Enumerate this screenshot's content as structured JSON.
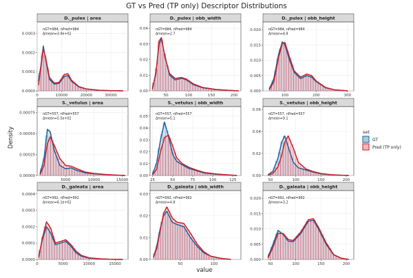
{
  "title": "GT vs Pred (TP only) Descriptor Distributions",
  "xlabel": "value",
  "ylabel": "Density",
  "legend": {
    "title": "set",
    "items": [
      {
        "label": "GT",
        "color": "#1f5f9a",
        "fill": "#a6cbe3"
      },
      {
        "label": "Pred (TP only)",
        "color": "#cc1f27",
        "fill": "#f2b7bb"
      }
    ]
  },
  "colors": {
    "gt": "#1f5f9a",
    "pred": "#cc1f27",
    "strip": "#d9d9d9",
    "grid": "#ebebeb"
  },
  "chart_data": [
    {
      "type": "histogram-density",
      "title": "D._pulex | area",
      "xlim": [
        0,
        37000
      ],
      "ylim": [
        0,
        0.00036
      ],
      "xticks": [
        0,
        10000,
        20000,
        30000
      ],
      "yticks": [
        0,
        0.0001,
        0.0002,
        0.0003
      ],
      "ytick_labels": [
        "0.0000",
        "0.0001",
        "0.0002",
        "0.0003"
      ],
      "annotation": [
        "nGT=984, nPred=984",
        "Δmean=3.9e+02"
      ],
      "series": [
        {
          "name": "GT",
          "x": [
            500,
            1500,
            2500,
            3500,
            5000,
            7000,
            9000,
            11000,
            12500,
            14000,
            17000,
            20000,
            25000,
            30000,
            35000
          ],
          "values": [
            5e-05,
            0.00013,
            0.000235,
            0.00016,
            6e-05,
            3.5e-05,
            4e-05,
            7.5e-05,
            8e-05,
            5e-05,
            2e-05,
            1e-05,
            3e-06,
            1e-06,
            0
          ]
        },
        {
          "name": "Pred (TP only)",
          "x": [
            500,
            1500,
            2500,
            3500,
            5000,
            7000,
            9000,
            11000,
            12500,
            14000,
            17000,
            20000,
            25000,
            30000,
            35000
          ],
          "values": [
            3e-05,
            0.00012,
            0.00022,
            0.00017,
            7e-05,
            4e-05,
            4.5e-05,
            8.5e-05,
            9e-05,
            5.5e-05,
            2.2e-05,
            1e-05,
            3e-06,
            1e-06,
            0
          ]
        }
      ]
    },
    {
      "type": "histogram-density",
      "title": "D._pulex | obb_width",
      "xlim": [
        15,
        215
      ],
      "ylim": [
        0,
        0.044
      ],
      "xticks": [
        50,
        100,
        150,
        200
      ],
      "yticks": [
        0,
        0.01,
        0.02,
        0.03,
        0.04
      ],
      "ytick_labels": [
        "0.00",
        "0.01",
        "0.02",
        "0.03",
        "0.04"
      ],
      "annotation": [
        "nGT=984, nPred=984",
        "Δmean=2.7"
      ],
      "series": [
        {
          "name": "GT",
          "x": [
            20,
            28,
            35,
            40,
            48,
            58,
            70,
            85,
            95,
            110,
            130,
            160,
            190,
            210
          ],
          "values": [
            0.001,
            0.012,
            0.03,
            0.033,
            0.022,
            0.01,
            0.007,
            0.008,
            0.007,
            0.004,
            0.002,
            0.0008,
            0.0003,
            0
          ]
        },
        {
          "name": "Pred (TP only)",
          "x": [
            20,
            28,
            35,
            40,
            48,
            58,
            70,
            85,
            95,
            110,
            130,
            160,
            190,
            210
          ],
          "values": [
            0.0008,
            0.011,
            0.032,
            0.034,
            0.021,
            0.011,
            0.008,
            0.0085,
            0.0075,
            0.0045,
            0.0022,
            0.0009,
            0.0003,
            0
          ]
        }
      ]
    },
    {
      "type": "histogram-density",
      "title": "D._pulex | obb_height",
      "xlim": [
        30,
        320
      ],
      "ylim": [
        0,
        0.0225
      ],
      "xticks": [
        100,
        200,
        300
      ],
      "yticks": [
        0,
        0.005,
        0.01,
        0.015,
        0.02
      ],
      "ytick_labels": [
        "0.000",
        "0.005",
        "0.010",
        "0.015",
        "0.020"
      ],
      "annotation": [
        "nGT=984, nPred=984",
        "Δmean=4.8"
      ],
      "series": [
        {
          "name": "GT",
          "x": [
            50,
            65,
            80,
            92,
            100,
            115,
            130,
            150,
            170,
            185,
            200,
            230,
            260,
            300
          ],
          "values": [
            0.0005,
            0.004,
            0.012,
            0.016,
            0.015,
            0.01,
            0.006,
            0.004,
            0.005,
            0.0045,
            0.003,
            0.001,
            0.0003,
            0
          ]
        },
        {
          "name": "Pred (TP only)",
          "x": [
            50,
            65,
            80,
            92,
            100,
            115,
            130,
            150,
            170,
            185,
            200,
            230,
            260,
            300
          ],
          "values": [
            0.0003,
            0.003,
            0.011,
            0.0155,
            0.0158,
            0.011,
            0.0065,
            0.0045,
            0.0055,
            0.005,
            0.0032,
            0.0011,
            0.0003,
            0
          ]
        }
      ]
    },
    {
      "type": "histogram-density",
      "title": "S._vetulus | area",
      "xlim": [
        0,
        16000
      ],
      "ylim": [
        0,
        0.00082
      ],
      "xticks": [
        5000,
        10000,
        15000
      ],
      "yticks": [
        0,
        0.00025,
        0.0005,
        0.00075
      ],
      "ytick_labels": [
        "0.00000",
        "0.00025",
        "0.00050",
        "0.00075"
      ],
      "annotation": [
        "nGT=557, nPred=557",
        "Δmean=5.5e+02"
      ],
      "series": [
        {
          "name": "GT",
          "x": [
            500,
            1200,
            1800,
            2300,
            3000,
            4000,
            5000,
            6000,
            7000,
            8500,
            10000,
            12000,
            14000,
            15500
          ],
          "values": [
            2e-05,
            0.0002,
            0.00055,
            0.00052,
            0.0003,
            0.00012,
            8e-05,
            9e-05,
            6e-05,
            3e-05,
            2e-05,
            1e-05,
            3e-06,
            0
          ]
        },
        {
          "name": "Pred (TP only)",
          "x": [
            500,
            1200,
            1800,
            2300,
            3000,
            4000,
            5000,
            6000,
            7000,
            8500,
            10000,
            12000,
            14000,
            15500
          ],
          "values": [
            1e-05,
            0.00012,
            0.00038,
            0.00046,
            0.00036,
            0.0002,
            0.00012,
            0.00011,
            8e-05,
            4e-05,
            2.5e-05,
            1.2e-05,
            4e-06,
            0
          ]
        }
      ]
    },
    {
      "type": "histogram-density",
      "title": "S._vetulus | obb_width",
      "xlim": [
        22,
        135
      ],
      "ylim": [
        0,
        0.058
      ],
      "xticks": [
        25,
        50,
        75,
        100,
        125
      ],
      "yticks": [
        0,
        0.01,
        0.02,
        0.03,
        0.04,
        0.05
      ],
      "ytick_labels": [
        "0.00",
        "0.01",
        "0.02",
        "0.03",
        "0.04",
        "0.05"
      ],
      "annotation": [
        "nGT=557, nPred=557",
        "Δmean=5.1"
      ],
      "series": [
        {
          "name": "GT",
          "x": [
            25,
            30,
            35,
            40,
            45,
            50,
            55,
            62,
            70,
            80,
            90,
            105,
            120,
            130
          ],
          "values": [
            0.001,
            0.01,
            0.03,
            0.045,
            0.033,
            0.018,
            0.012,
            0.009,
            0.006,
            0.004,
            0.002,
            0.001,
            0.0004,
            0
          ]
        },
        {
          "name": "Pred (TP only)",
          "x": [
            25,
            30,
            35,
            40,
            45,
            50,
            55,
            62,
            70,
            80,
            90,
            105,
            120,
            130
          ],
          "values": [
            0.0005,
            0.005,
            0.02,
            0.032,
            0.034,
            0.025,
            0.015,
            0.01,
            0.007,
            0.0045,
            0.0025,
            0.0012,
            0.0004,
            0
          ]
        }
      ]
    },
    {
      "type": "histogram-density",
      "title": "S._vetulus | obb_height",
      "xlim": [
        35,
        215
      ],
      "ylim": [
        0,
        0.0625
      ],
      "xticks": [
        50,
        100,
        150,
        200
      ],
      "yticks": [
        0,
        0.02,
        0.04,
        0.06
      ],
      "ytick_labels": [
        "0.00",
        "0.02",
        "0.04",
        "0.06"
      ],
      "annotation": [
        "nGT=557, nPred=557",
        "Δmean=9.1"
      ],
      "series": [
        {
          "name": "GT",
          "x": [
            45,
            55,
            65,
            72,
            78,
            85,
            95,
            105,
            120,
            135,
            150,
            170,
            190,
            205
          ],
          "values": [
            0.0005,
            0.004,
            0.016,
            0.03,
            0.036,
            0.026,
            0.012,
            0.007,
            0.005,
            0.003,
            0.0015,
            0.0006,
            0.0002,
            0
          ]
        },
        {
          "name": "Pred (TP only)",
          "x": [
            45,
            55,
            65,
            72,
            78,
            85,
            95,
            105,
            120,
            135,
            150,
            170,
            190,
            205
          ],
          "values": [
            0.0002,
            0.002,
            0.008,
            0.018,
            0.03,
            0.036,
            0.025,
            0.012,
            0.006,
            0.0035,
            0.0018,
            0.0007,
            0.0002,
            0
          ]
        }
      ]
    },
    {
      "type": "histogram-density",
      "title": "D._galeata | area",
      "xlim": [
        0,
        17500
      ],
      "ylim": [
        0,
        0.00042
      ],
      "xticks": [
        0,
        5000,
        10000,
        15000
      ],
      "yticks": [
        0,
        0.0001,
        0.0002,
        0.0003,
        0.0004
      ],
      "ytick_labels": [
        "0.0000",
        "0.0001",
        "0.0002",
        "0.0003",
        "0.0004"
      ],
      "annotation": [
        "nGT=992, nPred=992",
        "Δmean=6.1e+02"
      ],
      "series": [
        {
          "name": "GT",
          "x": [
            300,
            1000,
            1800,
            2600,
            3500,
            4500,
            5500,
            6500,
            7500,
            8500,
            10000,
            12000,
            14000,
            16500
          ],
          "values": [
            2e-05,
            0.00012,
            0.0002,
            0.00016,
            9e-05,
            0.0001,
            0.00011,
            8e-05,
            4e-05,
            2e-05,
            8e-06,
            3e-06,
            1e-06,
            0
          ]
        },
        {
          "name": "Pred (TP only)",
          "x": [
            300,
            1000,
            1800,
            2600,
            3500,
            4500,
            5500,
            6500,
            7500,
            8500,
            10000,
            12000,
            14000,
            16500
          ],
          "values": [
            1e-05,
            0.00013,
            0.00023,
            0.00019,
            0.0001,
            0.00011,
            0.00012,
            9e-05,
            5e-05,
            2.5e-05,
            1e-05,
            4e-06,
            1e-06,
            0
          ]
        }
      ]
    },
    {
      "type": "histogram-density",
      "title": "D._galeata | obb_width",
      "xlim": [
        5,
        140
      ],
      "ylim": [
        0,
        0.0315
      ],
      "xticks": [
        50,
        100
      ],
      "yticks": [
        0,
        0.01,
        0.02,
        0.03
      ],
      "ytick_labels": [
        "0.00",
        "0.01",
        "0.02",
        "0.03"
      ],
      "annotation": [
        "nGT=992, nPred=992",
        "Δmean=4.8"
      ],
      "series": [
        {
          "name": "GT",
          "x": [
            10,
            15,
            20,
            25,
            30,
            38,
            45,
            55,
            65,
            75,
            85,
            95,
            110,
            125
          ],
          "values": [
            0.001,
            0.006,
            0.014,
            0.02,
            0.022,
            0.017,
            0.016,
            0.015,
            0.01,
            0.006,
            0.003,
            0.0015,
            0.0005,
            0
          ]
        },
        {
          "name": "Pred (TP only)",
          "x": [
            10,
            15,
            20,
            25,
            30,
            38,
            45,
            55,
            65,
            75,
            85,
            95,
            110,
            125
          ],
          "values": [
            0.0008,
            0.005,
            0.013,
            0.021,
            0.024,
            0.019,
            0.017,
            0.0165,
            0.012,
            0.007,
            0.0035,
            0.0015,
            0.0005,
            0
          ]
        }
      ]
    },
    {
      "type": "histogram-density",
      "title": "D._galeata | obb_height",
      "xlim": [
        35,
        215
      ],
      "ylim": [
        0,
        0.0225
      ],
      "xticks": [
        50,
        100,
        150,
        200
      ],
      "yticks": [
        0,
        0.005,
        0.01,
        0.015,
        0.02
      ],
      "ytick_labels": [
        "0.000",
        "0.005",
        "0.010",
        "0.015",
        "0.020"
      ],
      "annotation": [
        "nGT=992, nPred=992",
        "Δmean=3.2"
      ],
      "series": [
        {
          "name": "GT",
          "x": [
            45,
            55,
            65,
            75,
            85,
            95,
            110,
            125,
            135,
            145,
            160,
            175,
            190,
            205
          ],
          "values": [
            0.0008,
            0.005,
            0.0095,
            0.0082,
            0.006,
            0.0058,
            0.0085,
            0.0125,
            0.0128,
            0.01,
            0.005,
            0.0015,
            0.0004,
            0
          ]
        },
        {
          "name": "Pred (TP only)",
          "x": [
            45,
            55,
            65,
            75,
            85,
            95,
            110,
            125,
            135,
            145,
            160,
            175,
            190,
            205
          ],
          "values": [
            0.0005,
            0.004,
            0.0085,
            0.0085,
            0.0065,
            0.0062,
            0.009,
            0.013,
            0.0133,
            0.0105,
            0.0055,
            0.0016,
            0.0004,
            0
          ]
        }
      ]
    }
  ]
}
